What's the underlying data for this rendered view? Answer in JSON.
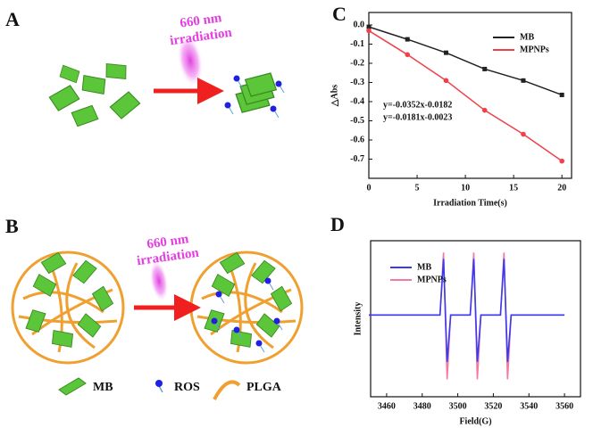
{
  "chart_data": [
    {
      "type": "line",
      "x_label": "Irradiation Time(s)",
      "y_label": "△Abs",
      "x": [
        0,
        4,
        8,
        12,
        16,
        20
      ],
      "series": [
        {
          "name": "MB",
          "color": "#222222",
          "marker": "square",
          "values": [
            -0.01,
            -0.075,
            -0.145,
            -0.23,
            -0.29,
            -0.365
          ]
        },
        {
          "name": "MPNPs",
          "color": "#f0404a",
          "marker": "circle",
          "values": [
            -0.03,
            -0.155,
            -0.29,
            -0.445,
            -0.57,
            -0.71
          ]
        }
      ],
      "xlim": [
        0,
        21
      ],
      "ylim": [
        -0.8,
        0.065
      ],
      "xticks": [
        0,
        5,
        10,
        15,
        20
      ],
      "yticks": [
        {
          "value": 0,
          "label": "0.0"
        },
        -0.1,
        -0.2,
        -0.3,
        -0.4,
        -0.5,
        -0.6,
        -0.7
      ],
      "annotations": [
        "y=-0.0352x-0.0182",
        "y=-0.0181x-0.0023"
      ],
      "legend": "upper right"
    },
    {
      "type": "line",
      "x_label": "Field(G)",
      "y_label": "Intensity",
      "x": [
        3450,
        3490,
        3492,
        3494,
        3496,
        3507,
        3509,
        3511,
        3513,
        3524,
        3526,
        3528,
        3530,
        3560
      ],
      "series": [
        {
          "name": "MB",
          "color": "#3a3af0",
          "marker": "none",
          "values": [
            0,
            0,
            0.9,
            -0.75,
            0,
            0,
            0.9,
            -0.75,
            0,
            0,
            0.9,
            -0.75,
            0,
            0
          ]
        },
        {
          "name": "MPNPs",
          "color": "#f07aa0",
          "marker": "none",
          "values": [
            0,
            0,
            1.0,
            -1.03,
            0,
            0,
            1.0,
            -1.03,
            0,
            0,
            1.0,
            -1.03,
            0,
            0
          ]
        }
      ],
      "xlim": [
        3451,
        3569
      ],
      "ylim": [
        -1.31,
        1.19
      ],
      "xticks": [
        3460,
        3480,
        3500,
        3520,
        3540,
        3560
      ],
      "legend": "upper left"
    }
  ],
  "panels": {
    "letters": [
      "A",
      "B",
      "C",
      "D"
    ],
    "irradiation_a": [
      "660 nm",
      "irradiation"
    ],
    "irradiation_b": [
      "660 nm",
      "irradiation"
    ],
    "legend_b": [
      "MB",
      "ROS",
      "PLGA"
    ]
  }
}
